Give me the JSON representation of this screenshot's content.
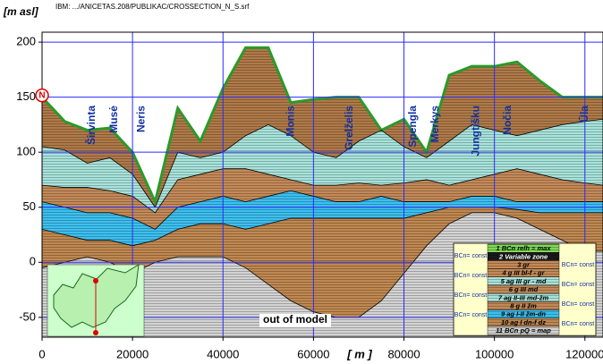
{
  "chart_data": {
    "type": "cross-section",
    "title": "IBM: .../ANICETAS.208/PUBLIKAC/CROSSECTION_N_S.srf",
    "y_label": "[m asl]",
    "x_label": "[ m ]",
    "xlim": [
      0,
      124000
    ],
    "ylim": [
      -68,
      209
    ],
    "xticks": [
      0,
      20000,
      40000,
      60000,
      80000,
      100000,
      120000
    ],
    "yticks": [
      -50,
      0,
      50,
      100,
      150,
      200
    ],
    "grid": true,
    "x": [
      0,
      5000,
      10000,
      15000,
      20000,
      25000,
      30000,
      35000,
      40000,
      45000,
      50000,
      55000,
      60000,
      65000,
      70000,
      75000,
      80000,
      85000,
      90000,
      95000,
      100000,
      105000,
      110000,
      115000,
      120000,
      124000
    ],
    "series": [
      {
        "color": "#b07a48",
        "values": [
          150,
          128,
          120,
          122,
          100,
          55,
          140,
          110,
          158,
          195,
          195,
          145,
          148,
          150,
          150,
          120,
          130,
          100,
          170,
          178,
          178,
          182,
          165,
          150,
          150,
          150
        ]
      },
      {
        "color": "#a8e4dc",
        "values": [
          105,
          102,
          90,
          95,
          80,
          50,
          100,
          95,
          100,
          115,
          125,
          115,
          100,
          95,
          110,
          120,
          105,
          95,
          110,
          125,
          120,
          115,
          120,
          125,
          128,
          130
        ]
      },
      {
        "color": "#c48a58",
        "values": [
          70,
          68,
          68,
          65,
          60,
          45,
          75,
          80,
          85,
          85,
          80,
          75,
          70,
          70,
          72,
          70,
          72,
          75,
          70,
          75,
          80,
          85,
          80,
          75,
          72,
          70
        ]
      },
      {
        "color": "#3cc0f0",
        "values": [
          55,
          50,
          45,
          45,
          40,
          30,
          50,
          55,
          60,
          55,
          60,
          65,
          60,
          55,
          55,
          60,
          55,
          55,
          55,
          60,
          60,
          55,
          55,
          55,
          55,
          55
        ]
      },
      {
        "color": "#c08850",
        "values": [
          30,
          25,
          20,
          20,
          15,
          20,
          30,
          35,
          35,
          30,
          35,
          40,
          40,
          40,
          40,
          40,
          40,
          45,
          50,
          50,
          50,
          48,
          45,
          45,
          45,
          45
        ]
      },
      {
        "color": "#d4d4d4",
        "values": [
          -5,
          0,
          5,
          0,
          -10,
          0,
          5,
          5,
          5,
          -5,
          -20,
          -35,
          -45,
          -50,
          -50,
          -35,
          -10,
          15,
          35,
          45,
          45,
          40,
          30,
          20,
          10,
          10
        ]
      }
    ],
    "annotations": [
      {
        "text": "Širvinta",
        "x": 11000
      },
      {
        "text": "Musė",
        "x": 16000
      },
      {
        "text": "Neris",
        "x": 22000
      },
      {
        "text": "Monis",
        "x": 55000
      },
      {
        "text": "Grelželis",
        "x": 68000
      },
      {
        "text": "Spengla",
        "x": 82000
      },
      {
        "text": "Merkys",
        "x": 87000
      },
      {
        "text": "Jungtišku",
        "x": 96000
      },
      {
        "text": "Nočia",
        "x": 103000
      },
      {
        "text": "Ūla",
        "x": 120000
      }
    ],
    "model_note": "out of model",
    "north_marker": "N",
    "legend": [
      {
        "label": "1 BCn relh = max",
        "color": "#7ed957"
      },
      {
        "label": "2 Variable zone",
        "color": "#1a1a1a"
      },
      {
        "label": "3 gr",
        "color": "#c48a58"
      },
      {
        "label": "4 g III bl-f - gr",
        "color": "#c48a58"
      },
      {
        "label": "5 ag III gr - md",
        "color": "#a8e4dc"
      },
      {
        "label": "6 g III md",
        "color": "#c48a58"
      },
      {
        "label": "7 ag II-III md-žm",
        "color": "#a8e4dc"
      },
      {
        "label": "8 g II žm",
        "color": "#c48a58"
      },
      {
        "label": "9 ag I-II žm-dn",
        "color": "#3cc0f0"
      },
      {
        "label": "10 ag I dn-f dz",
        "color": "#c08850"
      },
      {
        "label": "11 BCn pQ = map",
        "color": "#d4d4d4"
      }
    ],
    "bc_labels_left": [
      "BCn= const",
      "BCn= const",
      "BCn= const",
      "BCn= const"
    ],
    "bc_labels_right": [
      "BCn= const",
      "BCn= const",
      "BCn= const",
      "BCn= const"
    ]
  }
}
